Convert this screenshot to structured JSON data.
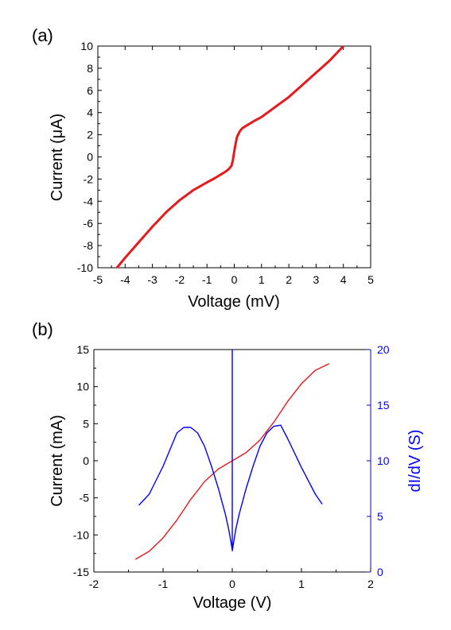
{
  "chart_data": [
    {
      "type": "line",
      "panel_label": "(a)",
      "xlabel": "Voltage (mV)",
      "ylabel": "Current (μA)",
      "xlim": [
        -5,
        5
      ],
      "ylim": [
        -10,
        10
      ],
      "xticks": [
        -5,
        -4,
        -3,
        -2,
        -1,
        0,
        1,
        2,
        3,
        4,
        5
      ],
      "yticks": [
        -10,
        -8,
        -6,
        -4,
        -2,
        0,
        2,
        4,
        6,
        8,
        10
      ],
      "grid": false,
      "series": [
        {
          "color": "#e41a1c",
          "x": [
            -4.3,
            -4.0,
            -3.5,
            -3.0,
            -2.5,
            -2.0,
            -1.5,
            -1.0,
            -0.7,
            -0.5,
            -0.3,
            -0.2,
            -0.1,
            -0.05,
            0.0,
            0.05,
            0.1,
            0.2,
            0.3,
            0.5,
            0.7,
            1.0,
            1.5,
            2.0,
            2.5,
            3.0,
            3.5,
            4.0
          ],
          "y": [
            -10.0,
            -9.1,
            -7.7,
            -6.3,
            -5.0,
            -3.9,
            -3.0,
            -2.3,
            -1.9,
            -1.6,
            -1.3,
            -1.1,
            -0.8,
            -0.3,
            0.5,
            1.2,
            1.8,
            2.3,
            2.6,
            2.9,
            3.2,
            3.6,
            4.5,
            5.4,
            6.5,
            7.6,
            8.7,
            10.0
          ]
        }
      ]
    },
    {
      "type": "line",
      "panel_label": "(b)",
      "xlabel": "Voltage (V)",
      "ylabel": "Current (mA)",
      "ylabel_right": "dI/dV (S)",
      "xlim": [
        -2,
        2
      ],
      "ylim": [
        -15,
        15
      ],
      "ylim_right": [
        0,
        20
      ],
      "xticks": [
        -2,
        -1,
        0,
        1,
        2
      ],
      "yticks": [
        -15,
        -10,
        -5,
        0,
        5,
        10,
        15
      ],
      "yticks_right": [
        0,
        5,
        10,
        15,
        20
      ],
      "grid": false,
      "right_axis_color": "#0000ff",
      "series": [
        {
          "axis": "left",
          "color": "#e41a1c",
          "x": [
            -1.4,
            -1.2,
            -1.0,
            -0.8,
            -0.6,
            -0.4,
            -0.2,
            0.0,
            0.2,
            0.4,
            0.6,
            0.8,
            1.0,
            1.2,
            1.4
          ],
          "y": [
            -13.3,
            -12.2,
            -10.4,
            -8.0,
            -5.2,
            -2.8,
            -1.1,
            0.0,
            1.1,
            2.8,
            5.2,
            8.0,
            10.4,
            12.2,
            13.1
          ]
        },
        {
          "axis": "right",
          "color": "#0000ff",
          "x": [
            -1.35,
            -1.2,
            -1.0,
            -0.8,
            -0.7,
            -0.6,
            -0.5,
            -0.4,
            -0.3,
            -0.2,
            -0.1,
            -0.05,
            0.0,
            0.0,
            0.0,
            0.05,
            0.1,
            0.2,
            0.3,
            0.4,
            0.5,
            0.6,
            0.7,
            0.8,
            1.0,
            1.2,
            1.3
          ],
          "y": [
            6.0,
            7.0,
            9.5,
            12.5,
            13.0,
            13.0,
            12.5,
            11.3,
            9.5,
            7.5,
            5.2,
            3.8,
            2.0,
            20.0,
            1.9,
            3.8,
            5.2,
            7.5,
            9.5,
            11.3,
            12.5,
            13.1,
            13.2,
            12.0,
            9.4,
            7.0,
            6.1
          ]
        }
      ]
    }
  ]
}
